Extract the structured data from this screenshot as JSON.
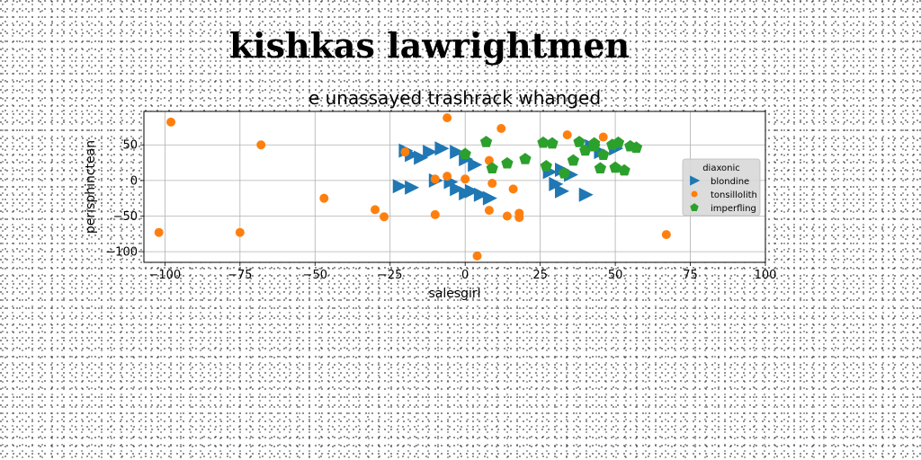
{
  "figure": {
    "suptitle": "kishkas lawrightmen"
  },
  "chart_data": {
    "type": "scatter",
    "title": "e unassayed trashrack whanged",
    "xlabel": "salesgirl",
    "ylabel": "perisphinctean",
    "xlim": [
      -107,
      100
    ],
    "ylim": [
      -115,
      97
    ],
    "xticks": [
      -100,
      -75,
      -50,
      -25,
      0,
      25,
      50,
      75,
      100
    ],
    "yticks": [
      -100,
      -50,
      0,
      50
    ],
    "grid": true,
    "legend": {
      "title": "diaxonic",
      "placement": "right"
    },
    "series": [
      {
        "name": "blondine",
        "color": "#1f77b4",
        "marker": "triangle-right",
        "points": [
          [
            -20,
            42
          ],
          [
            -18,
            36
          ],
          [
            -15,
            32
          ],
          [
            -12,
            40
          ],
          [
            -8,
            45
          ],
          [
            -3,
            40
          ],
          [
            0,
            30
          ],
          [
            3,
            22
          ],
          [
            -22,
            -8
          ],
          [
            -18,
            -10
          ],
          [
            -10,
            0
          ],
          [
            -5,
            -2
          ],
          [
            -3,
            -12
          ],
          [
            0,
            -18
          ],
          [
            2,
            -15
          ],
          [
            5,
            -20
          ],
          [
            8,
            -25
          ],
          [
            28,
            12
          ],
          [
            32,
            15
          ],
          [
            35,
            8
          ],
          [
            30,
            -5
          ],
          [
            32,
            -15
          ],
          [
            40,
            -20
          ],
          [
            42,
            48
          ],
          [
            45,
            40
          ],
          [
            50,
            45
          ]
        ]
      },
      {
        "name": "tonsillolith",
        "color": "#ff7f0e",
        "marker": "circle",
        "points": [
          [
            -98,
            82
          ],
          [
            -68,
            50
          ],
          [
            -102,
            -73
          ],
          [
            -75,
            -73
          ],
          [
            -47,
            -25
          ],
          [
            -30,
            -41
          ],
          [
            -27,
            -51
          ],
          [
            -20,
            40
          ],
          [
            -6,
            88
          ],
          [
            -6,
            6
          ],
          [
            -10,
            2
          ],
          [
            -10,
            -48
          ],
          [
            0,
            2
          ],
          [
            8,
            28
          ],
          [
            9,
            -4
          ],
          [
            8,
            -42
          ],
          [
            12,
            73
          ],
          [
            14,
            -50
          ],
          [
            16,
            -12
          ],
          [
            18,
            -46
          ],
          [
            18,
            -52
          ],
          [
            34,
            64
          ],
          [
            46,
            61
          ],
          [
            67,
            -76
          ],
          [
            4,
            -106
          ]
        ]
      },
      {
        "name": "imperfling",
        "color": "#2ca02c",
        "marker": "pentagon",
        "points": [
          [
            0,
            37
          ],
          [
            7,
            54
          ],
          [
            9,
            17
          ],
          [
            14,
            24
          ],
          [
            20,
            30
          ],
          [
            26,
            53
          ],
          [
            27,
            20
          ],
          [
            29,
            52
          ],
          [
            33,
            10
          ],
          [
            38,
            54
          ],
          [
            40,
            42
          ],
          [
            43,
            48
          ],
          [
            45,
            17
          ],
          [
            46,
            36
          ],
          [
            49,
            50
          ],
          [
            51,
            53
          ],
          [
            53,
            14
          ],
          [
            55,
            48
          ],
          [
            57,
            46
          ],
          [
            36,
            28
          ],
          [
            43,
            52
          ],
          [
            50,
            18
          ]
        ]
      }
    ]
  }
}
